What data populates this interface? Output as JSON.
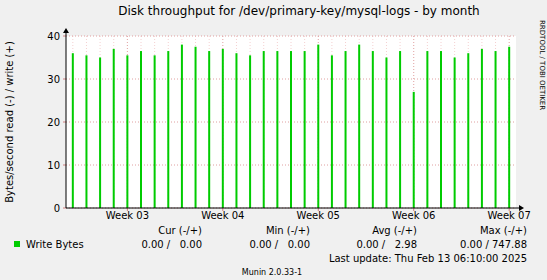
{
  "chart_data": {
    "type": "bar",
    "title": "Disk throughput for /dev/primary-key/mysql-logs - by month",
    "y_label": "Bytes/second read (-) / write (+)",
    "categories": [
      null,
      null,
      null,
      null,
      "Week 03",
      null,
      null,
      null,
      null,
      null,
      null,
      "Week 04",
      null,
      null,
      null,
      null,
      null,
      null,
      "Week 05",
      null,
      null,
      null,
      null,
      null,
      null,
      "Week 06",
      null,
      null,
      null,
      null,
      null,
      null,
      "Week 07"
    ],
    "series": [
      {
        "name": "Write Bytes",
        "color": "#00cc00",
        "values": [
          36,
          35.5,
          35,
          37,
          35.5,
          36.5,
          35.5,
          36.5,
          38,
          37.5,
          36.5,
          37,
          36,
          35.5,
          36.5,
          36.5,
          36.5,
          36.5,
          38,
          35.5,
          36.5,
          38,
          36.5,
          35,
          36.5,
          27,
          36.5,
          36.5,
          35,
          36,
          37,
          36.5,
          37.5
        ],
        "stats": [
          "0.00 /   0.00",
          "0.00 /   0.00",
          "0.00 /   2.98",
          "0.00 / 747.88"
        ]
      }
    ],
    "stats_headers": [
      "Cur (-/+)",
      "Min (-/+)",
      "Avg (-/+)",
      "Max (-/+)"
    ],
    "ylim": [
      0,
      40
    ],
    "yticks": [
      0,
      10,
      20,
      30,
      40
    ],
    "grid": true,
    "annotations": [
      "Last update: Thu Feb 13 06:10:00 2025",
      "Munin 2.0.33-1",
      "RRDTOOL / TOBI OETIKER"
    ]
  }
}
